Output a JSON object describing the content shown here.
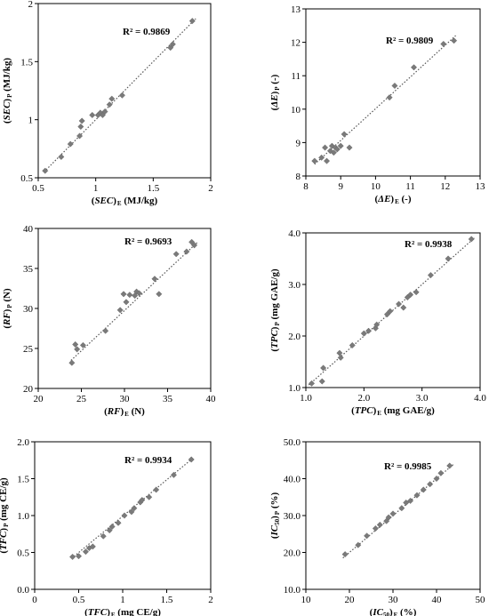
{
  "chart_data": [
    {
      "type": "scatter",
      "xlabel": "(SEC) E (MJ/kg)",
      "xlabel_parts": [
        "(",
        "SEC",
        ")",
        "E",
        " (MJ/kg)"
      ],
      "ylabel": "(SEC) P (MJ/kg)",
      "ylabel_parts": [
        "(",
        "SEC",
        ")",
        "P",
        " (MJ/kg)"
      ],
      "annotation": "R² = 0.9869",
      "xlim": [
        0.5,
        2
      ],
      "ylim": [
        0.5,
        2
      ],
      "xticks": [
        0.5,
        1,
        1.5,
        2
      ],
      "yticks": [
        0.5,
        1,
        1.5,
        2
      ],
      "xtick_labels": [
        "0.5",
        "1",
        "1.5",
        "2"
      ],
      "ytick_labels": [
        "0.5",
        "1",
        "1.5",
        "2"
      ],
      "trendline": {
        "x": [
          0.55,
          1.87
        ],
        "y": [
          0.55,
          1.87
        ]
      },
      "points": [
        [
          0.56,
          0.56
        ],
        [
          0.7,
          0.68
        ],
        [
          0.78,
          0.79
        ],
        [
          0.86,
          0.86
        ],
        [
          0.87,
          0.94
        ],
        [
          0.88,
          0.99
        ],
        [
          0.97,
          1.04
        ],
        [
          1.02,
          1.04
        ],
        [
          1.04,
          1.06
        ],
        [
          1.06,
          1.04
        ],
        [
          1.08,
          1.07
        ],
        [
          1.12,
          1.13
        ],
        [
          1.14,
          1.18
        ],
        [
          1.23,
          1.21
        ],
        [
          1.65,
          1.62
        ],
        [
          1.67,
          1.65
        ],
        [
          1.84,
          1.85
        ]
      ]
    },
    {
      "type": "scatter",
      "xlabel": "(ΔE) E (-)",
      "xlabel_parts": [
        "(",
        "ΔE",
        ")",
        "E",
        " (-)"
      ],
      "ylabel": "(ΔE) P (-)",
      "ylabel_parts": [
        "(",
        "ΔE",
        ")",
        "P",
        " (-)"
      ],
      "annotation": "R² = 0.9809",
      "xlim": [
        8,
        13
      ],
      "ylim": [
        8,
        13
      ],
      "xticks": [
        8,
        9,
        10,
        11,
        12,
        13
      ],
      "yticks": [
        8,
        9,
        10,
        11,
        12,
        13
      ],
      "xtick_labels": [
        "8",
        "9",
        "10",
        "11",
        "12",
        "13"
      ],
      "ytick_labels": [
        "8",
        "9",
        "10",
        "11",
        "12",
        "13"
      ],
      "trendline": {
        "x": [
          8.25,
          12.3
        ],
        "y": [
          8.35,
          12.2
        ]
      },
      "points": [
        [
          8.25,
          8.45
        ],
        [
          8.45,
          8.55
        ],
        [
          8.55,
          8.85
        ],
        [
          8.6,
          8.45
        ],
        [
          8.7,
          8.75
        ],
        [
          8.75,
          8.9
        ],
        [
          8.8,
          8.7
        ],
        [
          8.85,
          8.85
        ],
        [
          8.9,
          8.8
        ],
        [
          9.0,
          8.9
        ],
        [
          9.1,
          9.25
        ],
        [
          9.25,
          8.85
        ],
        [
          10.4,
          10.35
        ],
        [
          10.55,
          10.7
        ],
        [
          11.1,
          11.25
        ],
        [
          11.95,
          11.95
        ],
        [
          12.25,
          12.05
        ]
      ]
    },
    {
      "type": "scatter",
      "xlabel": "(RF) E (N)",
      "xlabel_parts": [
        "(",
        "RF",
        ")",
        "E",
        " (N)"
      ],
      "ylabel": "(RF) P (N)",
      "ylabel_parts": [
        "(",
        "RF",
        ")",
        "P",
        " (N)"
      ],
      "annotation": "R² = 0.9693",
      "xlim": [
        20,
        40
      ],
      "ylim": [
        20,
        40
      ],
      "xticks": [
        20,
        25,
        30,
        35,
        40
      ],
      "yticks": [
        20,
        25,
        30,
        35,
        40
      ],
      "xtick_labels": [
        "20",
        "25",
        "30",
        "35",
        "40"
      ],
      "ytick_labels": [
        "20",
        "25",
        "30",
        "35",
        "40"
      ],
      "trendline": {
        "x": [
          23.8,
          38.5
        ],
        "y": [
          23.5,
          38.3
        ]
      },
      "points": [
        [
          23.9,
          23.2
        ],
        [
          24.3,
          25.5
        ],
        [
          24.5,
          24.9
        ],
        [
          25.2,
          25.4
        ],
        [
          27.8,
          27.2
        ],
        [
          29.5,
          29.8
        ],
        [
          29.9,
          31.8
        ],
        [
          30.2,
          30.8
        ],
        [
          30.6,
          31.7
        ],
        [
          31.2,
          31.6
        ],
        [
          31.4,
          32.1
        ],
        [
          31.7,
          31.9
        ],
        [
          33.5,
          33.7
        ],
        [
          34.0,
          31.8
        ],
        [
          36.0,
          36.8
        ],
        [
          37.2,
          37.1
        ],
        [
          37.8,
          38.3
        ],
        [
          38.1,
          37.9
        ]
      ]
    },
    {
      "type": "scatter",
      "xlabel": "(TPC) E (mg GAE/g)",
      "xlabel_parts": [
        "(",
        "TPC",
        ")",
        "E",
        " (mg GAE/g)"
      ],
      "ylabel": "(TPC) P (mg GAE/g)",
      "ylabel_parts": [
        "(",
        "TPC",
        ")",
        "P",
        " (mg GAE/g)"
      ],
      "annotation": "R² = 0.9938",
      "xlim": [
        1,
        4
      ],
      "ylim": [
        1,
        4
      ],
      "xticks": [
        1,
        2,
        3,
        4
      ],
      "yticks": [
        1,
        2,
        3,
        4
      ],
      "xtick_labels": [
        "1.0",
        "2.0",
        "3.0",
        "4.0"
      ],
      "ytick_labels": [
        "1.0",
        "2.0",
        "3.0",
        "4.0"
      ],
      "trendline": {
        "x": [
          1.05,
          3.9
        ],
        "y": [
          1.05,
          3.9
        ]
      },
      "points": [
        [
          1.1,
          1.08
        ],
        [
          1.28,
          1.12
        ],
        [
          1.3,
          1.38
        ],
        [
          1.58,
          1.67
        ],
        [
          1.6,
          1.58
        ],
        [
          1.8,
          1.82
        ],
        [
          2.0,
          2.05
        ],
        [
          2.08,
          2.1
        ],
        [
          2.2,
          2.15
        ],
        [
          2.22,
          2.22
        ],
        [
          2.4,
          2.42
        ],
        [
          2.45,
          2.48
        ],
        [
          2.6,
          2.62
        ],
        [
          2.68,
          2.55
        ],
        [
          2.75,
          2.75
        ],
        [
          2.8,
          2.8
        ],
        [
          2.9,
          2.85
        ],
        [
          3.15,
          3.18
        ],
        [
          3.45,
          3.5
        ],
        [
          3.85,
          3.88
        ]
      ]
    },
    {
      "type": "scatter",
      "xlabel": "(TFC) E (mg CE/g)",
      "xlabel_parts": [
        "(",
        "TFC",
        ")",
        "E",
        " (mg CE/g)"
      ],
      "ylabel": "(TFC) P (mg CE/g)",
      "ylabel_parts": [
        "(",
        "TFC",
        ")",
        "P",
        " (mg CE/g)"
      ],
      "annotation": "R² = 0.9934",
      "xlim": [
        0,
        2
      ],
      "ylim": [
        0,
        2
      ],
      "xticks": [
        0,
        0.5,
        1,
        1.5,
        2
      ],
      "yticks": [
        0,
        0.5,
        1,
        1.5,
        2
      ],
      "xtick_labels": [
        "0",
        "0.5",
        "1",
        "1.5",
        "2"
      ],
      "ytick_labels": [
        "0.0",
        "0.5",
        "1.0",
        "1.5",
        "2.0"
      ],
      "trendline": {
        "x": [
          0.42,
          1.8
        ],
        "y": [
          0.42,
          1.78
        ]
      },
      "points": [
        [
          0.43,
          0.44
        ],
        [
          0.5,
          0.45
        ],
        [
          0.58,
          0.51
        ],
        [
          0.62,
          0.56
        ],
        [
          0.66,
          0.58
        ],
        [
          0.78,
          0.72
        ],
        [
          0.85,
          0.8
        ],
        [
          0.88,
          0.85
        ],
        [
          0.95,
          0.9
        ],
        [
          1.02,
          1.0
        ],
        [
          1.1,
          1.05
        ],
        [
          1.13,
          1.1
        ],
        [
          1.2,
          1.18
        ],
        [
          1.22,
          1.21
        ],
        [
          1.3,
          1.25
        ],
        [
          1.38,
          1.35
        ],
        [
          1.58,
          1.55
        ],
        [
          1.78,
          1.76
        ]
      ]
    },
    {
      "type": "scatter",
      "xlabel": "(IC50) E (%)",
      "xlabel_parts": [
        "(",
        "IC",
        "50",
        ")",
        "E",
        " (%)"
      ],
      "ylabel": "(IC50) P (%)",
      "ylabel_parts": [
        "(",
        "IC",
        "50",
        ")",
        "P",
        " (%)"
      ],
      "annotation": "R² = 0.9985",
      "xlim": [
        10,
        50
      ],
      "ylim": [
        10,
        50
      ],
      "xticks": [
        10,
        20,
        30,
        40,
        50
      ],
      "yticks": [
        10,
        20,
        30,
        40,
        50
      ],
      "xtick_labels": [
        "10",
        "20",
        "30",
        "40",
        "50"
      ],
      "ytick_labels": [
        "10.0",
        "20.0",
        "30.0",
        "40.0",
        "50.0"
      ],
      "trendline": {
        "x": [
          18.5,
          44
        ],
        "y": [
          18.5,
          44
        ]
      },
      "points": [
        [
          19,
          19.5
        ],
        [
          22,
          22
        ],
        [
          24,
          24.5
        ],
        [
          26,
          26.5
        ],
        [
          27,
          27.5
        ],
        [
          28.5,
          28.5
        ],
        [
          29,
          29.5
        ],
        [
          30,
          30.5
        ],
        [
          32,
          32
        ],
        [
          33,
          33.5
        ],
        [
          34,
          34
        ],
        [
          35.5,
          35.5
        ],
        [
          37,
          37
        ],
        [
          38.5,
          38.5
        ],
        [
          40,
          40
        ],
        [
          41,
          41.5
        ],
        [
          43,
          43.5
        ]
      ]
    }
  ]
}
